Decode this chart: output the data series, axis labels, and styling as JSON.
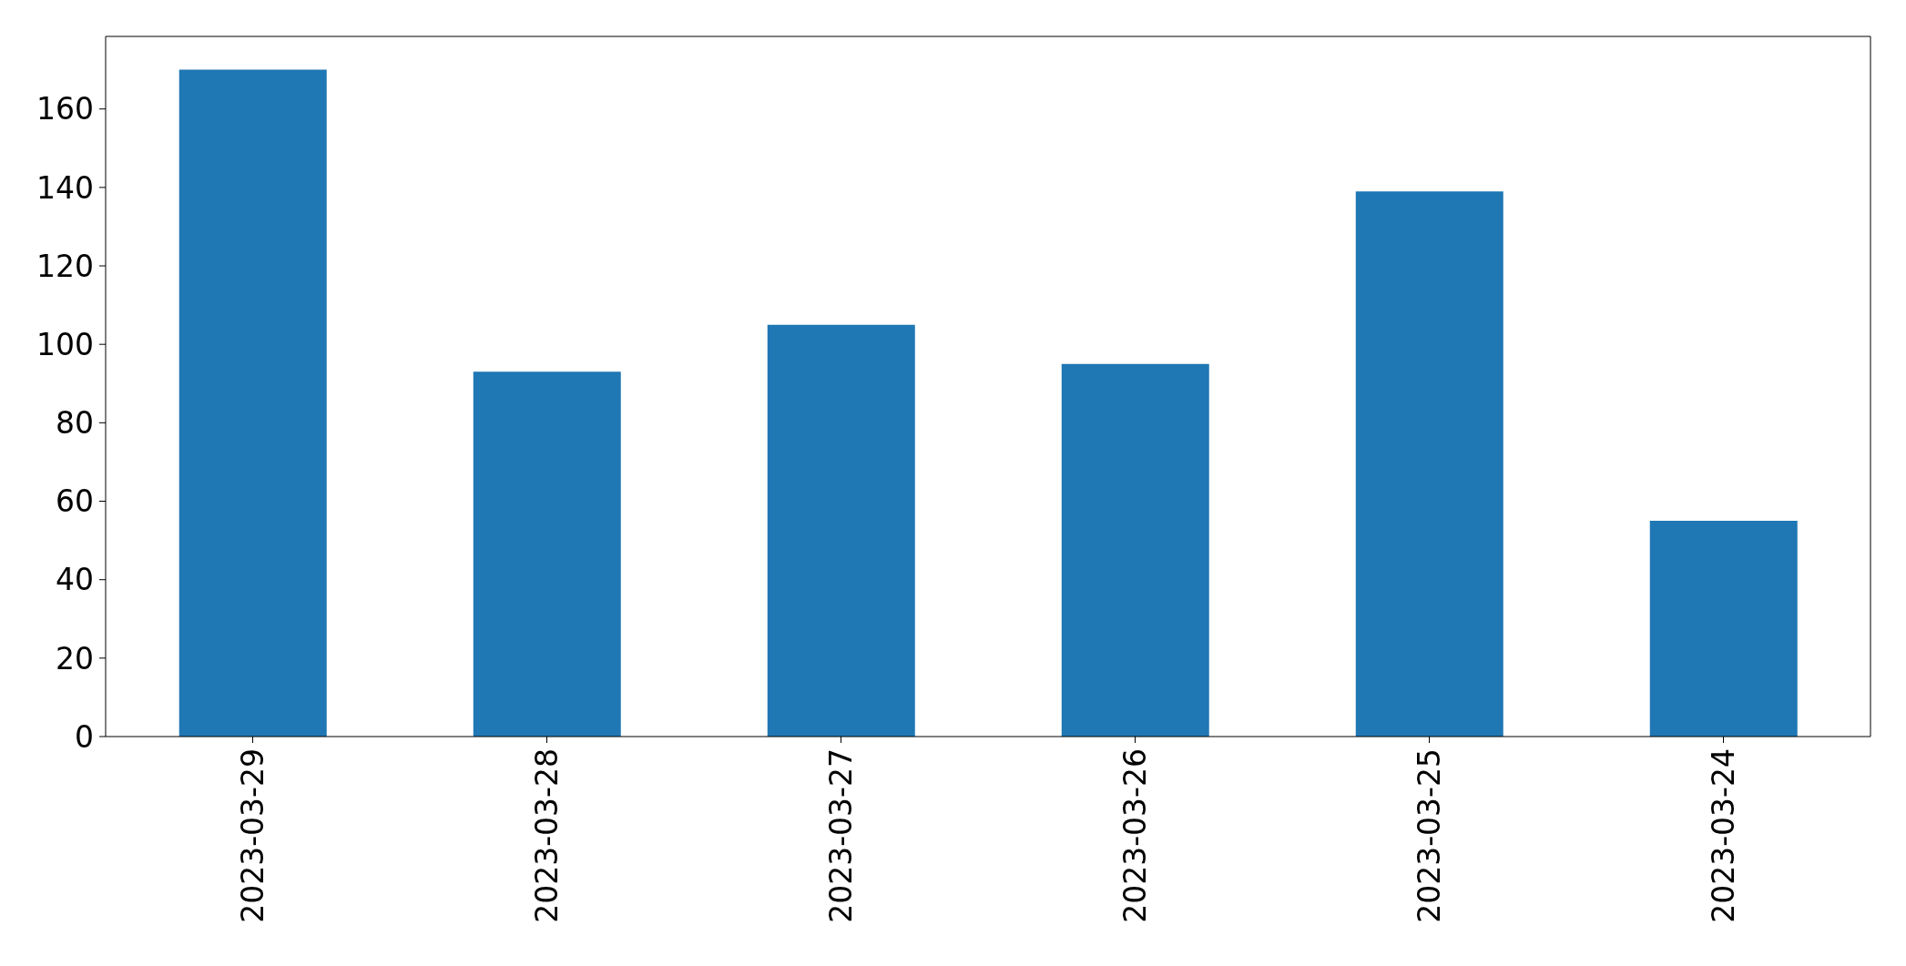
{
  "chart_data": {
    "type": "bar",
    "categories": [
      "2023-03-29",
      "2023-03-28",
      "2023-03-27",
      "2023-03-26",
      "2023-03-25",
      "2023-03-24"
    ],
    "values": [
      170,
      93,
      105,
      95,
      139,
      55
    ],
    "color": "#1f77b4",
    "ylim": [
      0,
      178.5
    ],
    "yticks": [
      0,
      20,
      40,
      60,
      80,
      100,
      120,
      140,
      160
    ]
  }
}
